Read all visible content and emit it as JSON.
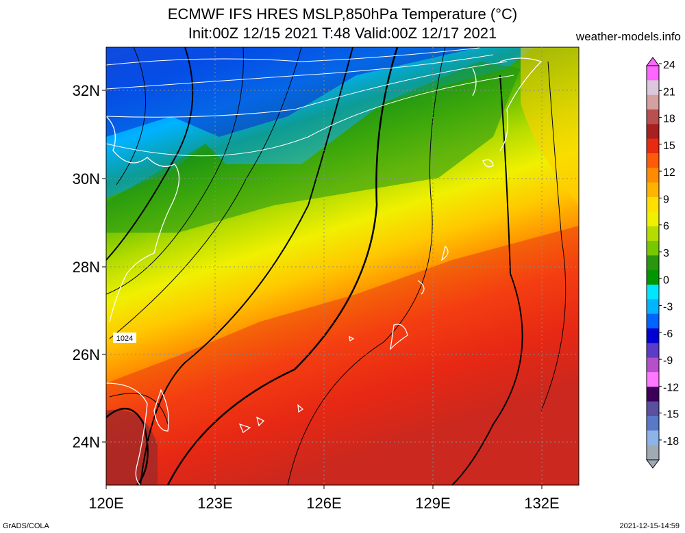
{
  "header": {
    "title_line1": "ECMWF IFS HRES MSLP,850hPa Temperature (°C)",
    "title_line2": "Init:00Z 12/15 2021 T:48 Valid:00Z 12/17 2021",
    "source": "weather-models.info"
  },
  "map": {
    "lat_labels": [
      "32N",
      "30N",
      "28N",
      "26N",
      "24N"
    ],
    "lon_labels": [
      "120E",
      "123E",
      "126E",
      "129E",
      "132E"
    ],
    "isobar_label": "1024",
    "grid": "dotted",
    "region": "East China Sea / Ryukyu Islands / southern Japan"
  },
  "colorbar": {
    "units": "°C",
    "labels": [
      "24",
      "21",
      "18",
      "15",
      "12",
      "9",
      "6",
      "3",
      "0",
      "-3",
      "-6",
      "-9",
      "-12",
      "-15",
      "-18"
    ],
    "colors_top_to_bottom": [
      "#ff66ff",
      "#dcc8dc",
      "#d4a0a0",
      "#b85050",
      "#a82020",
      "#e82a10",
      "#ff5a0a",
      "#ff8c00",
      "#ffb400",
      "#ffe000",
      "#f0f000",
      "#b4dc00",
      "#78c800",
      "#2a9610",
      "#009600",
      "#00e6ff",
      "#00b4ff",
      "#0064ff",
      "#0000d2",
      "#5a3cc8",
      "#b450c8",
      "#ff78ff",
      "#3c005a",
      "#5a50a0",
      "#5a78c8",
      "#8cb4e6",
      "#a0aab4"
    ]
  },
  "footer": {
    "left": "GrADS/COLA",
    "right": "2021-12-15-14:59"
  }
}
